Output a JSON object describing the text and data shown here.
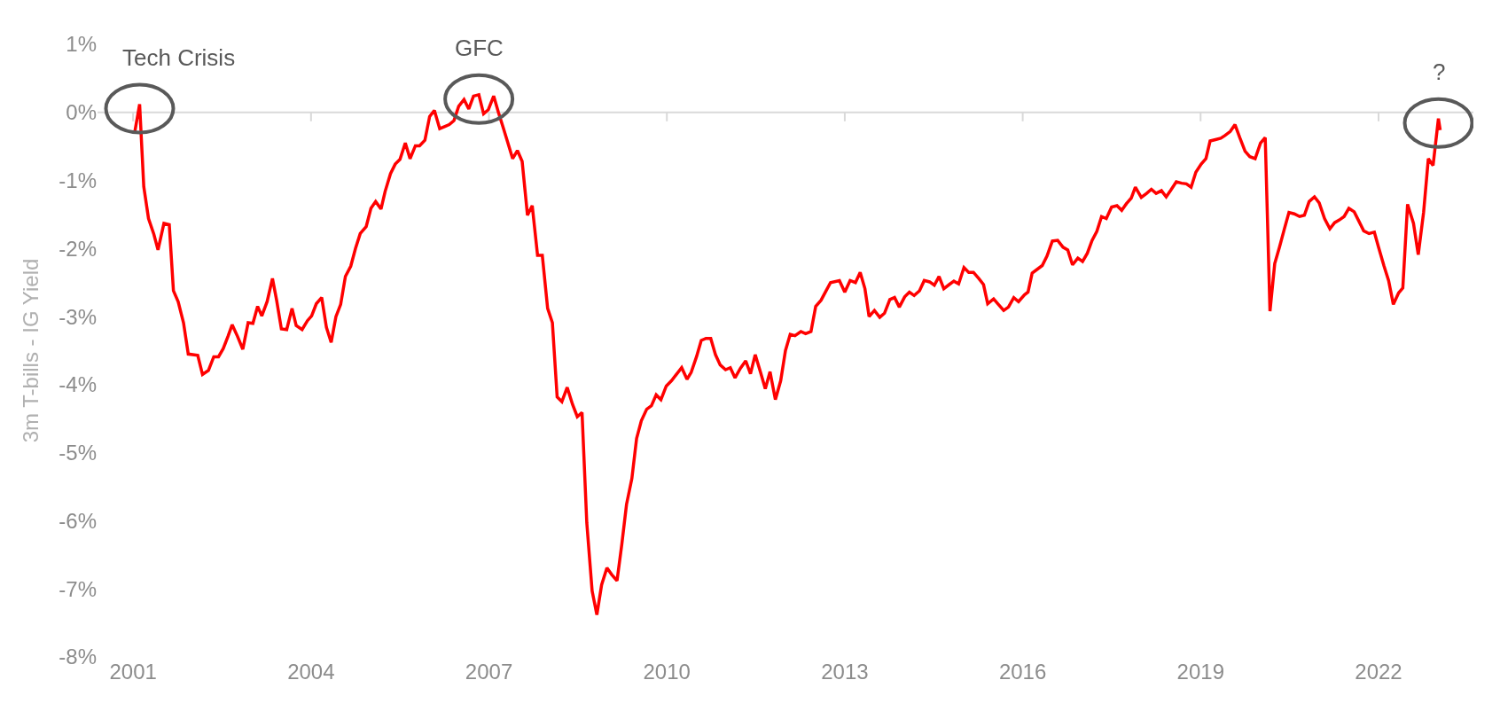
{
  "chart_data": {
    "type": "line",
    "ylabel": "3m T-bills - IG Yield",
    "x": [
      2001.03,
      2001.11,
      2001.18,
      2001.26,
      2001.35,
      2001.42,
      2001.52,
      2001.61,
      2001.68,
      2001.76,
      2001.85,
      2001.93,
      2002.09,
      2002.17,
      2002.27,
      2002.36,
      2002.44,
      2002.52,
      2002.6,
      2002.67,
      2002.76,
      2002.85,
      2002.94,
      2003.02,
      2003.1,
      2003.17,
      2003.26,
      2003.35,
      2003.42,
      2003.5,
      2003.59,
      2003.68,
      2003.75,
      2003.85,
      2003.94,
      2004.01,
      2004.09,
      2004.18,
      2004.26,
      2004.34,
      2004.42,
      2004.5,
      2004.58,
      2004.67,
      2004.75,
      2004.83,
      2004.93,
      2005.01,
      2005.09,
      2005.18,
      2005.25,
      2005.34,
      2005.42,
      2005.5,
      2005.59,
      2005.67,
      2005.76,
      2005.83,
      2005.92,
      2006.0,
      2006.08,
      2006.17,
      2006.25,
      2006.33,
      2006.41,
      2006.49,
      2006.58,
      2006.66,
      2006.74,
      2006.83,
      2006.91,
      2006.99,
      2007.08,
      2007.16,
      2007.24,
      2007.32,
      2007.4,
      2007.48,
      2007.56,
      2007.65,
      2007.73,
      2007.82,
      2007.9,
      2007.99,
      2008.07,
      2008.15,
      2008.23,
      2008.32,
      2008.41,
      2008.49,
      2008.57,
      2008.65,
      2008.74,
      2008.82,
      2008.9,
      2008.99,
      2009.07,
      2009.16,
      2009.24,
      2009.32,
      2009.41,
      2009.49,
      2009.57,
      2009.66,
      2009.74,
      2009.82,
      2009.9,
      2009.99,
      2010.08,
      2010.16,
      2010.25,
      2010.34,
      2010.41,
      2010.5,
      2010.58,
      2010.66,
      2010.74,
      2010.82,
      2010.9,
      2010.99,
      2011.07,
      2011.15,
      2011.24,
      2011.33,
      2011.41,
      2011.49,
      2011.58,
      2011.66,
      2011.74,
      2011.83,
      2011.92,
      2012.0,
      2012.08,
      2012.16,
      2012.26,
      2012.34,
      2012.43,
      2012.51,
      2012.6,
      2012.68,
      2012.76,
      2012.91,
      2013.0,
      2013.09,
      2013.18,
      2013.26,
      2013.34,
      2013.41,
      2013.5,
      2013.59,
      2013.67,
      2013.76,
      2013.84,
      2013.92,
      2014.01,
      2014.09,
      2014.17,
      2014.26,
      2014.34,
      2014.43,
      2014.51,
      2014.59,
      2014.67,
      2014.76,
      2014.84,
      2014.92,
      2015.01,
      2015.09,
      2015.17,
      2015.26,
      2015.34,
      2015.41,
      2015.51,
      2015.59,
      2015.68,
      2015.76,
      2015.85,
      2015.93,
      2016.03,
      2016.09,
      2016.16,
      2016.33,
      2016.41,
      2016.5,
      2016.59,
      2016.68,
      2016.76,
      2016.84,
      2016.93,
      2017.01,
      2017.09,
      2017.17,
      2017.25,
      2017.33,
      2017.41,
      2017.5,
      2017.59,
      2017.67,
      2017.75,
      2017.83,
      2017.9,
      2018.0,
      2018.09,
      2018.17,
      2018.25,
      2018.34,
      2018.42,
      2018.5,
      2018.59,
      2018.68,
      2018.76,
      2018.84,
      2018.92,
      2019.01,
      2019.09,
      2019.16,
      2019.25,
      2019.34,
      2019.41,
      2019.5,
      2019.58,
      2019.66,
      2019.75,
      2019.83,
      2019.92,
      2020.01,
      2020.09,
      2020.17,
      2020.25,
      2020.33,
      2020.41,
      2020.49,
      2020.58,
      2020.67,
      2020.75,
      2020.83,
      2020.92,
      2021.0,
      2021.09,
      2021.18,
      2021.26,
      2021.34,
      2021.42,
      2021.5,
      2021.59,
      2021.67,
      2021.75,
      2021.84,
      2021.93,
      2022.0,
      2022.09,
      2022.17,
      2022.25,
      2022.34,
      2022.41,
      2022.49,
      2022.59,
      2022.67,
      2022.76,
      2022.84,
      2022.92,
      2023.01,
      2023.04
    ],
    "series": [
      {
        "color": "#ff0000",
        "values": [
          -0.28,
          0.12,
          -1.09,
          -1.56,
          -1.79,
          -2.02,
          -1.63,
          -1.65,
          -2.62,
          -2.78,
          -3.09,
          -3.55,
          -3.57,
          -3.85,
          -3.79,
          -3.59,
          -3.59,
          -3.47,
          -3.29,
          -3.12,
          -3.29,
          -3.48,
          -3.09,
          -3.1,
          -2.85,
          -2.99,
          -2.78,
          -2.44,
          -2.76,
          -3.18,
          -3.19,
          -2.88,
          -3.13,
          -3.19,
          -3.06,
          -2.99,
          -2.81,
          -2.72,
          -3.16,
          -3.38,
          -3.0,
          -2.82,
          -2.41,
          -2.26,
          -2.0,
          -1.78,
          -1.68,
          -1.41,
          -1.31,
          -1.42,
          -1.16,
          -0.9,
          -0.76,
          -0.69,
          -0.45,
          -0.68,
          -0.49,
          -0.49,
          -0.41,
          -0.06,
          0.03,
          -0.24,
          -0.21,
          -0.18,
          -0.12,
          0.09,
          0.19,
          0.05,
          0.24,
          0.26,
          -0.02,
          0.04,
          0.24,
          0.0,
          -0.22,
          -0.45,
          -0.68,
          -0.56,
          -0.72,
          -1.51,
          -1.37,
          -2.1,
          -2.1,
          -2.88,
          -3.09,
          -4.18,
          -4.25,
          -4.04,
          -4.29,
          -4.47,
          -4.41,
          -6.03,
          -7.03,
          -7.38,
          -6.94,
          -6.69,
          -6.79,
          -6.88,
          -6.35,
          -5.76,
          -5.38,
          -4.79,
          -4.53,
          -4.36,
          -4.31,
          -4.15,
          -4.22,
          -4.02,
          -3.94,
          -3.85,
          -3.75,
          -3.92,
          -3.82,
          -3.59,
          -3.35,
          -3.32,
          -3.32,
          -3.56,
          -3.71,
          -3.78,
          -3.75,
          -3.9,
          -3.76,
          -3.65,
          -3.84,
          -3.56,
          -3.82,
          -4.06,
          -3.81,
          -4.22,
          -3.94,
          -3.5,
          -3.26,
          -3.28,
          -3.22,
          -3.25,
          -3.22,
          -2.85,
          -2.76,
          -2.63,
          -2.5,
          -2.47,
          -2.64,
          -2.47,
          -2.5,
          -2.35,
          -2.59,
          -3.0,
          -2.91,
          -3.01,
          -2.95,
          -2.75,
          -2.72,
          -2.86,
          -2.71,
          -2.64,
          -2.69,
          -2.62,
          -2.47,
          -2.49,
          -2.54,
          -2.41,
          -2.59,
          -2.53,
          -2.48,
          -2.52,
          -2.28,
          -2.35,
          -2.35,
          -2.44,
          -2.53,
          -2.81,
          -2.74,
          -2.82,
          -2.91,
          -2.86,
          -2.72,
          -2.78,
          -2.68,
          -2.64,
          -2.36,
          -2.25,
          -2.11,
          -1.89,
          -1.88,
          -1.98,
          -2.02,
          -2.24,
          -2.14,
          -2.19,
          -2.07,
          -1.88,
          -1.75,
          -1.53,
          -1.56,
          -1.39,
          -1.37,
          -1.44,
          -1.34,
          -1.26,
          -1.1,
          -1.25,
          -1.19,
          -1.13,
          -1.19,
          -1.15,
          -1.24,
          -1.14,
          -1.02,
          -1.04,
          -1.05,
          -1.1,
          -0.88,
          -0.76,
          -0.68,
          -0.42,
          -0.4,
          -0.38,
          -0.34,
          -0.28,
          -0.18,
          -0.37,
          -0.57,
          -0.65,
          -0.68,
          -0.45,
          -0.37,
          -2.92,
          -2.22,
          -1.98,
          -1.72,
          -1.47,
          -1.49,
          -1.53,
          -1.51,
          -1.31,
          -1.24,
          -1.33,
          -1.56,
          -1.71,
          -1.62,
          -1.58,
          -1.53,
          -1.41,
          -1.46,
          -1.6,
          -1.74,
          -1.78,
          -1.76,
          -1.98,
          -2.25,
          -2.47,
          -2.82,
          -2.65,
          -2.58,
          -1.35,
          -1.63,
          -2.09,
          -1.47,
          -0.68,
          -0.78,
          -0.09,
          -0.26
        ]
      }
    ],
    "xlim": [
      2000.4,
      2023.6
    ],
    "xticks": [
      2001,
      2004,
      2007,
      2010,
      2013,
      2016,
      2019,
      2022
    ],
    "ylim": [
      -8,
      1
    ],
    "yticks": [
      {
        "value": 1,
        "label": "1%"
      },
      {
        "value": 0,
        "label": "0%"
      },
      {
        "value": -1,
        "label": "-1%"
      },
      {
        "value": -2,
        "label": "-2%"
      },
      {
        "value": -3,
        "label": "-3%"
      },
      {
        "value": -4,
        "label": "-4%"
      },
      {
        "value": -5,
        "label": "-5%"
      },
      {
        "value": -6,
        "label": "-6%"
      },
      {
        "value": -7,
        "label": "-7%"
      },
      {
        "value": -8,
        "label": "-8%"
      }
    ],
    "ref_lines": [
      {
        "axis": "y",
        "value": 0,
        "color": "#d9d9d9"
      }
    ],
    "annotations": [
      {
        "text": "Tech Crisis",
        "x": 2001.11,
        "y": 0.12
      },
      {
        "text": "GFC",
        "x": 2006.83,
        "y": 0.26
      },
      {
        "text": "?",
        "x": 2023.01,
        "y": -0.09
      }
    ],
    "grid": false,
    "marker": "none",
    "line_style": "solid"
  }
}
